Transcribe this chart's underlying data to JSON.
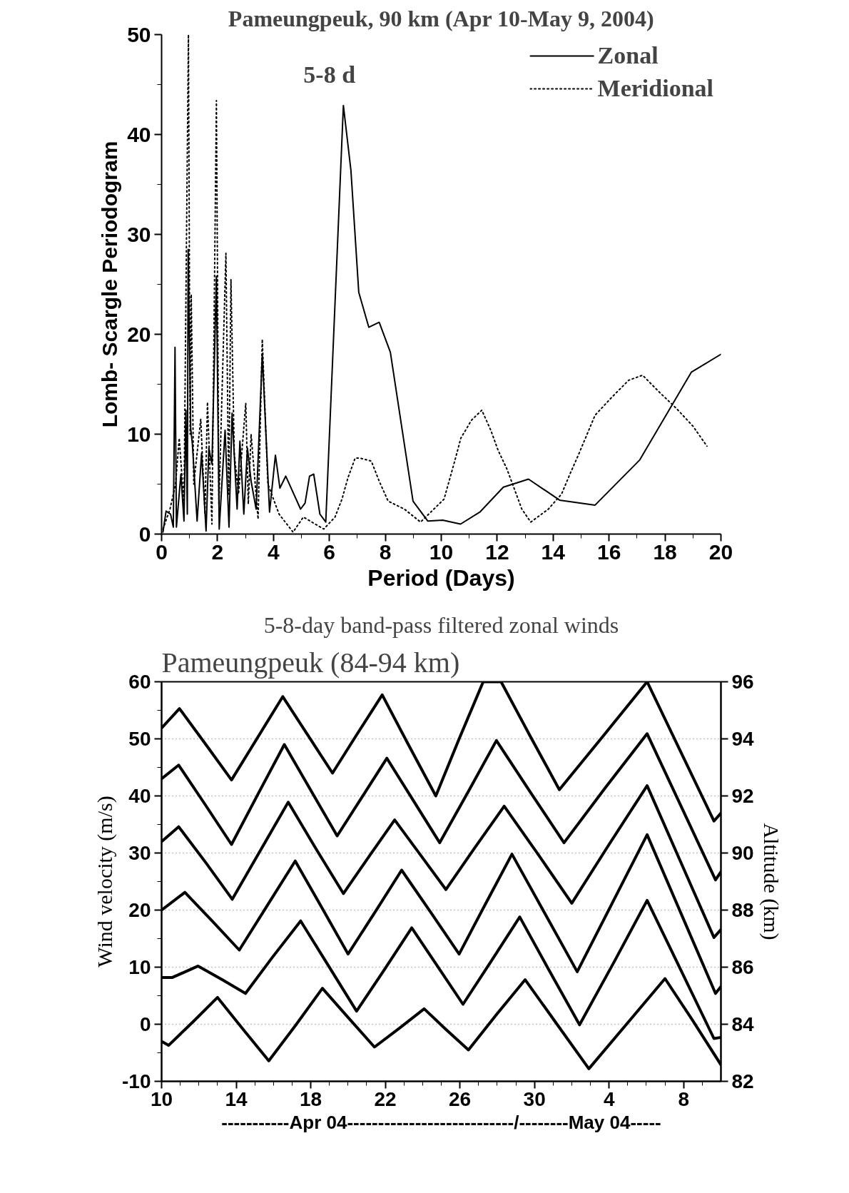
{
  "chart_data": [
    {
      "type": "line",
      "title": "Pameungpeuk, 90 km (Apr 10-May 9, 2004)",
      "xlabel": "Period (Days)",
      "ylabel": "Lomb- Scargle Periodogram",
      "xlim": [
        0,
        20
      ],
      "ylim": [
        0,
        50
      ],
      "xticks": [
        0,
        {
          "value": 1,
          "label": null
        },
        2,
        {
          "value": 3,
          "label": null
        },
        4,
        {
          "value": 5,
          "label": null
        },
        6,
        {
          "value": 7,
          "label": null
        },
        8,
        {
          "value": 9,
          "label": null
        },
        10,
        {
          "value": 11,
          "label": null
        },
        12,
        {
          "value": 13,
          "label": null
        },
        14,
        {
          "value": 15,
          "label": null
        },
        16,
        {
          "value": 17,
          "label": null
        },
        18,
        {
          "value": 19,
          "label": null
        },
        20
      ],
      "yticks": [
        0,
        {
          "value": 5,
          "label": null
        },
        10,
        {
          "value": 15,
          "label": null
        },
        20,
        {
          "value": 25,
          "label": null
        },
        30,
        {
          "value": 35,
          "label": null
        },
        40,
        {
          "value": 45,
          "label": null
        },
        50
      ],
      "legend": "top right",
      "annotations": [
        "5-8 d"
      ],
      "series": [
        {
          "name": "Zonal",
          "color": "#000000",
          "line_style": "solid",
          "x": [
            0.05,
            0.16,
            0.32,
            0.42,
            0.48,
            0.53,
            0.69,
            0.8,
            0.87,
            0.92,
            0.95,
            1.04,
            1.1,
            1.27,
            1.43,
            1.59,
            1.69,
            1.8,
            1.96,
            2.06,
            2.27,
            2.41,
            2.52,
            2.7,
            2.8,
            2.94,
            3.07,
            3.2,
            3.38,
            3.6,
            3.86,
            4.07,
            4.23,
            4.44,
            4.97,
            5.13,
            5.29,
            5.44,
            5.66,
            5.87,
            6.5,
            6.77,
            7.05,
            7.41,
            7.78,
            8.18,
            8.99,
            9.52,
            10.05,
            10.69,
            11.38,
            12.22,
            13.12,
            14.23,
            15.5,
            17.09,
            18.94,
            20.0
          ],
          "values": [
            0.2,
            2.3,
            2.0,
            0.7,
            18.7,
            0.7,
            6.0,
            1.3,
            12.4,
            2.0,
            28.5,
            10.6,
            9.0,
            1.3,
            8.1,
            0.3,
            8.6,
            7.0,
            25.8,
            0.5,
            10.4,
            0.7,
            12.1,
            2.5,
            9.3,
            2.0,
            8.6,
            5.3,
            2.5,
            18.0,
            2.2,
            7.9,
            4.6,
            5.8,
            2.5,
            3.1,
            5.8,
            6.0,
            2.0,
            1.2,
            42.9,
            36.4,
            24.2,
            20.7,
            21.2,
            18.2,
            3.3,
            1.3,
            1.4,
            1.0,
            2.2,
            4.7,
            5.5,
            3.4,
            2.9,
            7.4,
            16.2,
            18.0
          ]
        },
        {
          "name": "Meridional",
          "color": "#000000",
          "line_style": "dotted",
          "x": [
            0.05,
            0.3,
            0.5,
            0.63,
            0.8,
            0.96,
            1.02,
            1.06,
            1.15,
            1.4,
            1.55,
            1.64,
            1.8,
            1.96,
            2.05,
            2.3,
            2.4,
            2.48,
            2.6,
            2.75,
            3.01,
            3.1,
            3.2,
            3.45,
            3.6,
            3.8,
            4.2,
            4.7,
            5.07,
            5.8,
            6.2,
            6.45,
            6.66,
            6.92,
            7.1,
            7.5,
            7.78,
            8.1,
            8.68,
            9.26,
            10.1,
            10.3,
            10.5,
            10.7,
            11.08,
            11.45,
            11.77,
            12.03,
            12.35,
            12.88,
            13.2,
            13.83,
            14.3,
            14.6,
            14.9,
            15.2,
            15.5,
            16.1,
            16.7,
            17.2,
            17.8,
            18.4,
            19.0,
            19.5
          ],
          "values": [
            0.5,
            2.5,
            5.0,
            9.6,
            3.0,
            50.0,
            10.0,
            24.0,
            5.0,
            11.5,
            2.0,
            13.2,
            1.0,
            43.4,
            3.0,
            28.1,
            4.0,
            25.5,
            8.0,
            4.0,
            13.1,
            3.0,
            10.0,
            1.5,
            19.5,
            5.0,
            2.0,
            0.2,
            1.7,
            0.5,
            1.7,
            3.5,
            5.6,
            7.6,
            7.6,
            7.3,
            5.3,
            3.3,
            2.5,
            1.2,
            3.5,
            5.5,
            7.5,
            9.6,
            11.4,
            12.4,
            10.4,
            8.4,
            6.5,
            2.5,
            1.2,
            2.5,
            4.0,
            6.0,
            7.9,
            9.9,
            11.9,
            13.7,
            15.4,
            15.9,
            14.2,
            12.6,
            10.8,
            8.8
          ]
        }
      ]
    },
    {
      "type": "line",
      "title": "5-8-day band-pass filtered zonal winds",
      "subtitle": "Pameungpeuk (84-94 km)",
      "xlabel": "-----------Apr 04---------------------------/--------May 04-----",
      "ylabel": "Wind velocity (m/s)",
      "y2label": "Altitude (km)",
      "xlim": [
        "2004-04-10",
        "2004-05-10"
      ],
      "ylim": [
        -10,
        60
      ],
      "y2lim": [
        82,
        96
      ],
      "grid": "y",
      "xticks": [
        {
          "value": "2004-04-10",
          "label": "10"
        },
        {
          "value": "2004-04-11",
          "label": null
        },
        {
          "value": "2004-04-12",
          "label": null
        },
        {
          "value": "2004-04-13",
          "label": null
        },
        {
          "value": "2004-04-14",
          "label": "14"
        },
        {
          "value": "2004-04-15",
          "label": null
        },
        {
          "value": "2004-04-16",
          "label": null
        },
        {
          "value": "2004-04-17",
          "label": null
        },
        {
          "value": "2004-04-18",
          "label": "18"
        },
        {
          "value": "2004-04-19",
          "label": null
        },
        {
          "value": "2004-04-20",
          "label": null
        },
        {
          "value": "2004-04-21",
          "label": null
        },
        {
          "value": "2004-04-22",
          "label": "22"
        },
        {
          "value": "2004-04-23",
          "label": null
        },
        {
          "value": "2004-04-24",
          "label": null
        },
        {
          "value": "2004-04-25",
          "label": null
        },
        {
          "value": "2004-04-26",
          "label": "26"
        },
        {
          "value": "2004-04-27",
          "label": null
        },
        {
          "value": "2004-04-28",
          "label": null
        },
        {
          "value": "2004-04-29",
          "label": null
        },
        {
          "value": "2004-04-30",
          "label": "30"
        },
        {
          "value": "2004-05-01",
          "label": null
        },
        {
          "value": "2004-05-02",
          "label": null
        },
        {
          "value": "2004-05-03",
          "label": null
        },
        {
          "value": "2004-05-04",
          "label": "4"
        },
        {
          "value": "2004-05-05",
          "label": null
        },
        {
          "value": "2004-05-06",
          "label": null
        },
        {
          "value": "2004-05-07",
          "label": null
        },
        {
          "value": "2004-05-08",
          "label": "8"
        },
        {
          "value": "2004-05-09",
          "label": null
        }
      ],
      "yticks": [
        -10,
        {
          "value": -5,
          "label": null
        },
        0,
        {
          "value": 5,
          "label": null
        },
        10,
        {
          "value": 15,
          "label": null
        },
        20,
        {
          "value": 25,
          "label": null
        },
        30,
        {
          "value": 35,
          "label": null
        },
        40,
        {
          "value": 45,
          "label": null
        },
        50,
        {
          "value": 55,
          "label": null
        },
        60
      ],
      "y2ticks": [
        82,
        84,
        86,
        88,
        90,
        92,
        94,
        96
      ],
      "series": [
        {
          "color": "#000000",
          "x": [
            "2004-04-10",
            "2004-04-10T23:00",
            "2004-04-12T09:00",
            "2004-04-13T18:00",
            "2004-04-15T03:00",
            "2004-04-16T12:00",
            "2004-04-17T20:00",
            "2004-04-19T04:00",
            "2004-04-20T12:00",
            "2004-04-21T20:00",
            "2004-04-23T06:00",
            "2004-04-24T17:00",
            "2004-04-25T23:00",
            "2004-04-27T06:00",
            "2004-04-28T05:00",
            "2004-04-29T18:00",
            "2004-05-01T08:00",
            "2004-05-03T17:00",
            "2004-05-06T01:00",
            "2004-05-07T20:00",
            "2004-05-09T15:00",
            "2004-05-10"
          ],
          "values": [
            51.9,
            55.3,
            49.0,
            42.8,
            50.1,
            57.4,
            50.7,
            44.0,
            50.9,
            57.7,
            48.9,
            40.0,
            50.0,
            60.0,
            60.0,
            50.6,
            41.1,
            50.6,
            60.0,
            47.8,
            35.6,
            37.0
          ]
        },
        {
          "color": "#000000",
          "x": [
            "2004-04-10",
            "2004-04-10T22:00",
            "2004-04-12T08:00",
            "2004-04-13T18:00",
            "2004-04-15T04:00",
            "2004-04-16T14:00",
            "2004-04-18",
            "2004-04-19T10:00",
            "2004-04-20T18:00",
            "2004-04-22T02:00",
            "2004-04-23T12:00",
            "2004-04-24T22:00",
            "2004-04-26T11:00",
            "2004-04-27T23:00",
            "2004-04-29T18:00",
            "2004-05-01T14:00",
            "2004-05-03T19:00",
            "2004-05-06T01:00",
            "2004-05-07T21:00",
            "2004-05-09T17:00",
            "2004-05-10"
          ],
          "values": [
            43.0,
            45.4,
            38.5,
            31.5,
            40.3,
            49.0,
            41.0,
            33.0,
            39.8,
            46.6,
            39.2,
            31.8,
            40.8,
            49.7,
            40.8,
            31.8,
            41.4,
            50.9,
            38.1,
            25.3,
            26.7
          ]
        },
        {
          "color": "#000000",
          "x": [
            "2004-04-10",
            "2004-04-10T22:00",
            "2004-04-12T09:00",
            "2004-04-13T19:00",
            "2004-04-15T07:00",
            "2004-04-16T19:00",
            "2004-04-18T06:00",
            "2004-04-19T18:00",
            "2004-04-21T03:00",
            "2004-04-22T12:00",
            "2004-04-23T21:00",
            "2004-04-25T06:00",
            "2004-04-26T19:00",
            "2004-04-28T09:00",
            "2004-04-30T05:00",
            "2004-05-02",
            "2004-05-04",
            "2004-05-06T01:00",
            "2004-05-07T20:00",
            "2004-05-09T15:00",
            "2004-05-10"
          ],
          "values": [
            32.0,
            34.6,
            28.3,
            21.9,
            30.4,
            38.9,
            30.9,
            22.9,
            29.4,
            35.8,
            29.7,
            23.6,
            30.9,
            38.2,
            29.7,
            21.2,
            31.5,
            41.8,
            28.5,
            15.2,
            16.6
          ]
        },
        {
          "color": "#000000",
          "x": [
            "2004-04-10",
            "2004-04-11T06:00",
            "2004-04-12T17:00",
            "2004-04-14T04:00",
            "2004-04-15T16:00",
            "2004-04-17T04:00",
            "2004-04-18T14:00",
            "2004-04-20",
            "2004-04-21T11:00",
            "2004-04-22T21:00",
            "2004-04-24T10:00",
            "2004-04-25T23:00",
            "2004-04-27T09:00",
            "2004-04-28T19:00",
            "2004-04-30T13:00",
            "2004-05-02T07:00",
            "2004-05-04T04:00",
            "2004-05-06T01:00",
            "2004-05-07T21:00",
            "2004-05-09T17:00",
            "2004-05-10"
          ],
          "values": [
            20.0,
            23.1,
            18.1,
            13.0,
            20.8,
            28.6,
            20.5,
            12.3,
            19.7,
            27.0,
            19.7,
            12.3,
            21.1,
            29.8,
            19.5,
            9.2,
            21.2,
            33.2,
            19.3,
            5.4,
            6.6
          ]
        },
        {
          "color": "#000000",
          "x": [
            "2004-04-10",
            "2004-04-10T14:00",
            "2004-04-11T23:00",
            "2004-04-13T06:00",
            "2004-04-14T12:00",
            "2004-04-15T23:00",
            "2004-04-17T11:00",
            "2004-04-18T23:00",
            "2004-04-20T11:00",
            "2004-04-21T23:00",
            "2004-04-23T10:00",
            "2004-04-24T19:00",
            "2004-04-26T04:00",
            "2004-04-27T17:00",
            "2004-04-29T05:00",
            "2004-04-30T19:00",
            "2004-05-02T10:00",
            "2004-05-04T06:00",
            "2004-05-06T01:00",
            "2004-05-07T20:00",
            "2004-05-09T15:00",
            "2004-05-10"
          ],
          "values": [
            8.2,
            8.2,
            10.2,
            7.8,
            5.4,
            11.8,
            18.1,
            10.2,
            2.3,
            9.6,
            16.9,
            10.2,
            3.5,
            11.2,
            18.8,
            9.4,
            -0.1,
            10.8,
            21.7,
            9.6,
            -2.5,
            -2.3
          ]
        },
        {
          "color": "#000000",
          "x": [
            "2004-04-10",
            "2004-04-10T09:00",
            "2004-04-11T17:00",
            "2004-04-13",
            "2004-04-14T09:00",
            "2004-04-15T18:00",
            "2004-04-17T05:00",
            "2004-04-18T15:00",
            "2004-04-20",
            "2004-04-21T10:00",
            "2004-04-22T18:00",
            "2004-04-24T02:00",
            "2004-04-25T06:00",
            "2004-04-26T11:00",
            "2004-04-27T23:00",
            "2004-04-29T12:00",
            "2004-05-01T05:00",
            "2004-05-02T22:00",
            "2004-05-04T23:00",
            "2004-05-07",
            "2004-05-08T11:00",
            "2004-05-10"
          ],
          "values": [
            -3.0,
            -3.7,
            0.5,
            4.7,
            -0.9,
            -6.4,
            -0.1,
            6.3,
            1.2,
            -4.0,
            -0.7,
            2.7,
            -0.9,
            -4.5,
            1.7,
            7.8,
            0.0,
            -7.8,
            0.1,
            8.0,
            0.8,
            -7.1
          ]
        }
      ]
    }
  ]
}
